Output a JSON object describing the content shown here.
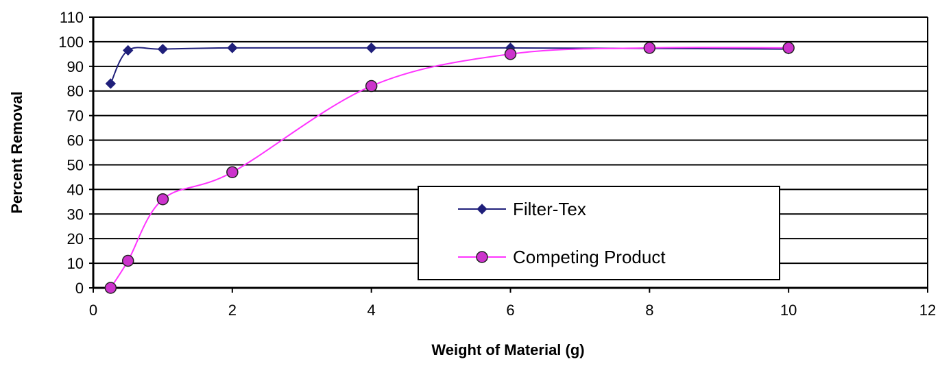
{
  "chart_data": {
    "type": "line",
    "title": "",
    "xlabel": "Weight of Material (g)",
    "ylabel": "Percent Removal",
    "xlim": [
      0,
      12
    ],
    "ylim": [
      0,
      110
    ],
    "xticks": [
      0,
      2,
      4,
      6,
      8,
      10,
      12
    ],
    "yticks": [
      0,
      10,
      20,
      30,
      40,
      50,
      60,
      70,
      80,
      90,
      100,
      110
    ],
    "grid": "horizontal",
    "smooth": true,
    "legend_position": "lower-right",
    "series": [
      {
        "name": "Filter-Tex",
        "color": "#1f1f7a",
        "marker": "diamond",
        "x": [
          0.25,
          0.5,
          1,
          2,
          4,
          6,
          10
        ],
        "y": [
          83,
          96.5,
          97,
          97.5,
          97.5,
          97.5,
          97
        ]
      },
      {
        "name": "Competing Product",
        "color": "#ff33ff",
        "marker_fill": "#cc33cc",
        "marker": "circle",
        "x": [
          0.25,
          0.5,
          1,
          2,
          4,
          6,
          8,
          10
        ],
        "y": [
          0,
          11,
          36,
          47,
          82,
          95,
          97.5,
          97.5
        ]
      }
    ]
  }
}
